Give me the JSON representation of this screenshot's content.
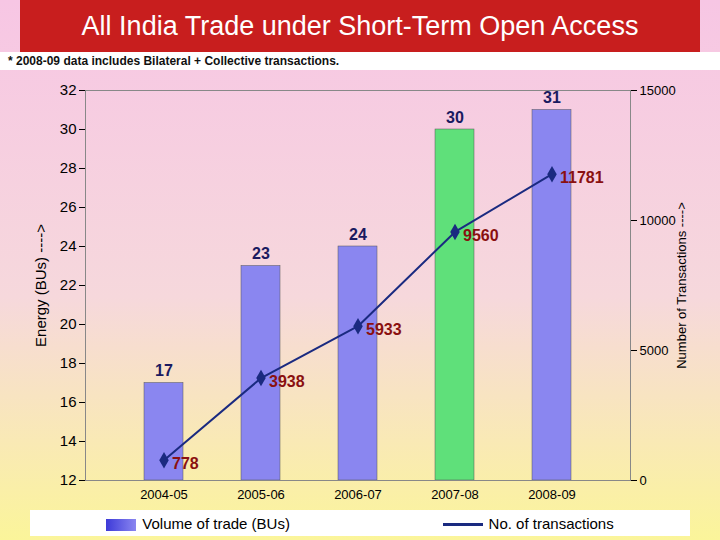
{
  "chart_data": {
    "type": "bar",
    "title": "All India Trade under Short-Term Open Access",
    "subtitle": "* 2008-09 data includes Bilateral + Collective transactions.",
    "categories": [
      "2004-05",
      "2005-06",
      "2006-07",
      "2007-08",
      "2008-09"
    ],
    "series": [
      {
        "name": "Volume of trade (BUs)",
        "type": "bar",
        "colors": [
          "#8a86f0",
          "#8a86f0",
          "#8a86f0",
          "#5fe07a",
          "#8a86f0"
        ],
        "values": [
          17,
          23,
          24,
          30,
          31
        ]
      },
      {
        "name": "No. of transactions",
        "type": "line",
        "axis": "y2",
        "color": "#1a2a80",
        "marker": "diamond",
        "values": [
          778,
          3938,
          5933,
          9560,
          11781
        ]
      }
    ],
    "ylabel": "Energy (BUs) ---->",
    "y2label": "Number of Transactions ---->",
    "ylim": [
      12,
      32
    ],
    "yticks": [
      12,
      14,
      16,
      18,
      20,
      22,
      24,
      26,
      28,
      30,
      32
    ],
    "y2lim": [
      0,
      15000
    ],
    "y2ticks": [
      0,
      5000,
      10000,
      15000
    ],
    "data_labels": true,
    "grid": false,
    "legend": "bottom"
  }
}
